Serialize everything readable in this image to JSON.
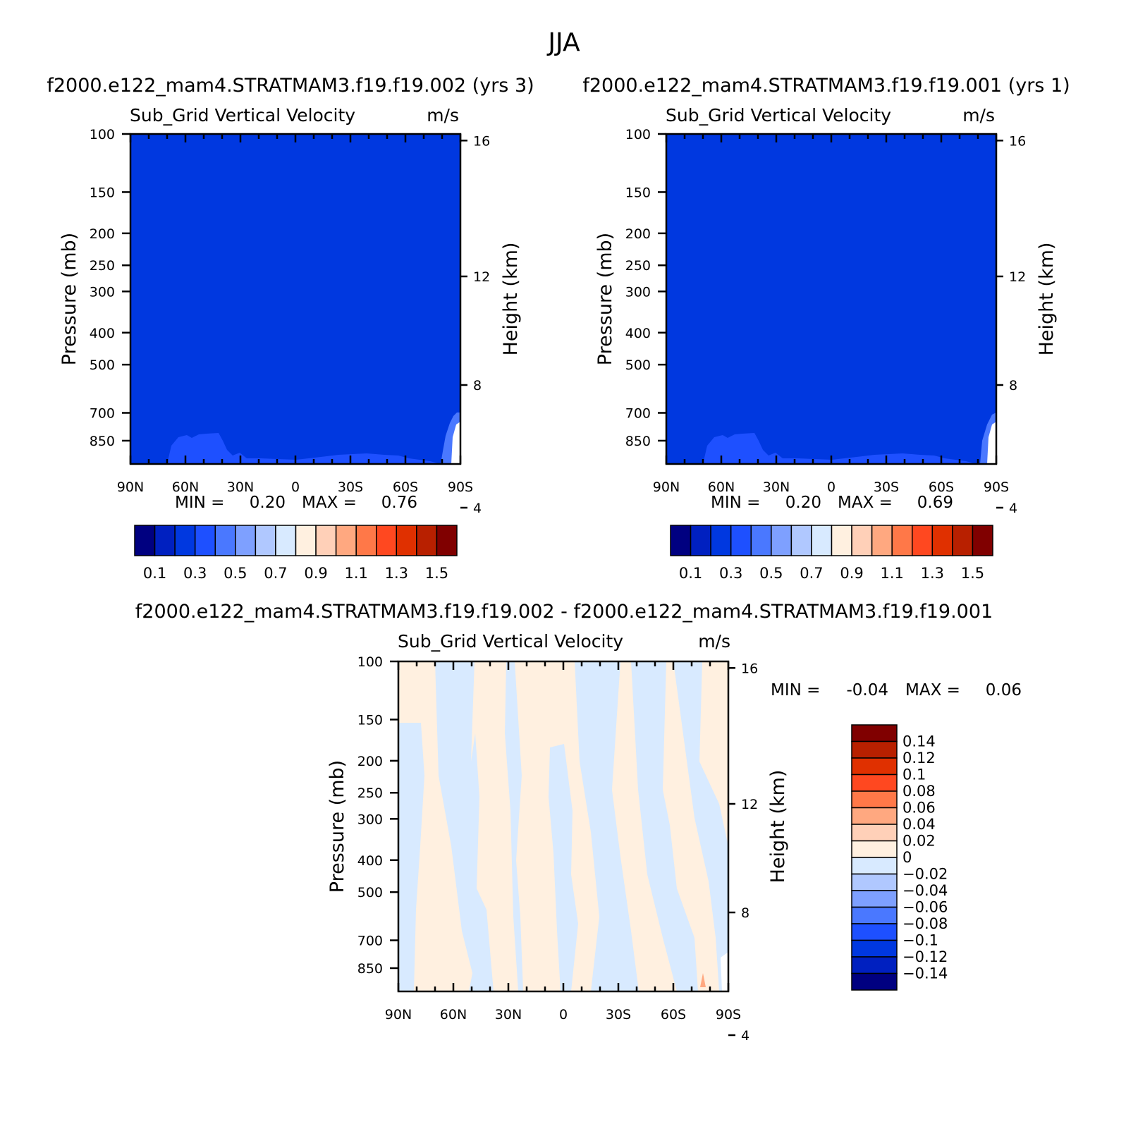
{
  "figure": {
    "title": "JJA"
  },
  "colors": {
    "palette_abs": [
      "#000080",
      "#0020c0",
      "#0038e0",
      "#1e50ff",
      "#4a78ff",
      "#7ea0ff",
      "#b0c8ff",
      "#d8eaff",
      "#fff0e0",
      "#ffd0b8",
      "#ffa880",
      "#ff7848",
      "#ff4820",
      "#e03000",
      "#b82000",
      "#800000"
    ],
    "palette_diff": [
      "#000080",
      "#0020c0",
      "#0038e0",
      "#1e50ff",
      "#4a78ff",
      "#7ea0ff",
      "#b0c8ff",
      "#d8eaff",
      "#fff0e0",
      "#ffd0b8",
      "#ffa880",
      "#ff7848",
      "#ff4820",
      "#e03000",
      "#b82000",
      "#800000"
    ]
  },
  "chart_data": [
    {
      "type": "heatmap",
      "header": "f2000.e122_mam4.STRATMAM3.f19.f19.002  (yrs  3)",
      "title": "Sub_Grid Vertical Velocity",
      "units": "m/s",
      "ylabel": "Pressure (mb)",
      "y2label": "Height (km)",
      "x_ticks": [
        "90N",
        "60N",
        "30N",
        "0",
        "30S",
        "60S",
        "90S"
      ],
      "y_ticks": [
        100,
        150,
        200,
        250,
        300,
        400,
        500,
        700,
        850
      ],
      "y2_ticks": [
        16,
        12,
        8,
        4
      ],
      "ylim": [
        100,
        1000
      ],
      "y_scale": "log",
      "min_label": "MIN =",
      "min": "0.20",
      "max_label": "MAX =",
      "max": "0.76",
      "background_level": 0.3,
      "colorbar_labels": [
        "0.1",
        "0.3",
        "0.5",
        "0.7",
        "0.9",
        "1.1",
        "1.3",
        "1.5"
      ]
    },
    {
      "type": "heatmap",
      "header": "f2000.e122_mam4.STRATMAM3.f19.f19.001  (yrs  1)",
      "title": "Sub_Grid Vertical Velocity",
      "units": "m/s",
      "ylabel": "Pressure (mb)",
      "y2label": "Height (km)",
      "x_ticks": [
        "90N",
        "60N",
        "30N",
        "0",
        "30S",
        "60S",
        "90S"
      ],
      "y_ticks": [
        100,
        150,
        200,
        250,
        300,
        400,
        500,
        700,
        850
      ],
      "y2_ticks": [
        16,
        12,
        8,
        4
      ],
      "ylim": [
        100,
        1000
      ],
      "y_scale": "log",
      "min_label": "MIN =",
      "min": "0.20",
      "max_label": "MAX =",
      "max": "0.69",
      "background_level": 0.3,
      "colorbar_labels": [
        "0.1",
        "0.3",
        "0.5",
        "0.7",
        "0.9",
        "1.1",
        "1.3",
        "1.5"
      ]
    },
    {
      "type": "heatmap",
      "header": "f2000.e122_mam4.STRATMAM3.f19.f19.002 - f2000.e122_mam4.STRATMAM3.f19.f19.001",
      "title": "Sub_Grid Vertical Velocity",
      "units": "m/s",
      "ylabel": "Pressure (mb)",
      "y2label": "Height (km)",
      "x_ticks": [
        "90N",
        "60N",
        "30N",
        "0",
        "30S",
        "60S",
        "90S"
      ],
      "y_ticks": [
        100,
        150,
        200,
        250,
        300,
        400,
        500,
        700,
        850
      ],
      "y2_ticks": [
        16,
        12,
        8,
        4
      ],
      "ylim": [
        100,
        1000
      ],
      "y_scale": "log",
      "min_label": "MIN =",
      "min": "-0.04",
      "max_label": "MAX =",
      "max": "0.06",
      "colorbar_labels": [
        "0.14",
        "0.12",
        "0.1",
        "0.08",
        "0.06",
        "0.04",
        "0.02",
        "0",
        "-0.02",
        "-0.04",
        "-0.06",
        "-0.08",
        "-0.1",
        "-0.12",
        "-0.14"
      ]
    }
  ]
}
